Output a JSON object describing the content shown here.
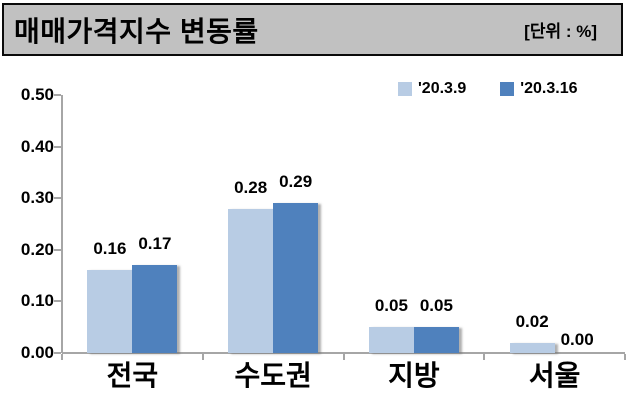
{
  "header": {
    "title": "매매가격지수 변동률",
    "unit_label": "[단위 : %]"
  },
  "colors": {
    "header_bg": "#C1C1C1",
    "axis": "#A6A6A6",
    "series_light": "#B8CCE4",
    "series_dark": "#4F81BD",
    "text": "#000000"
  },
  "chart_data": {
    "type": "bar",
    "title": "매매가격지수 변동률",
    "unit": "%",
    "categories": [
      "전국",
      "수도권",
      "지방",
      "서울"
    ],
    "series": [
      {
        "name": "'20.3.9",
        "color": "#B8CCE4",
        "values": [
          0.16,
          0.28,
          0.05,
          0.02
        ]
      },
      {
        "name": "'20.3.16",
        "color": "#4F81BD",
        "values": [
          0.17,
          0.29,
          0.05,
          0.0
        ]
      }
    ],
    "ylim": [
      0,
      0.5
    ],
    "ytick_interval": 0.1,
    "ytick_labels": [
      "0.00",
      "0.10",
      "0.20",
      "0.30",
      "0.40",
      "0.50"
    ],
    "grid": false,
    "legend_position": "top-right",
    "data_labels": true
  }
}
